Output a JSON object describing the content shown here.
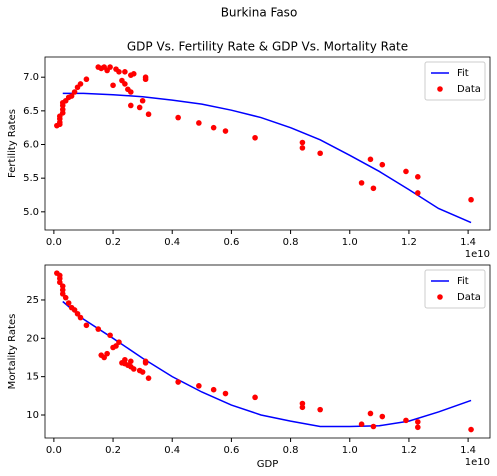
{
  "suptitle": "Burkina Faso",
  "chart_data": [
    {
      "type": "scatter",
      "title": "GDP Vs. Fertility Rate & GDP Vs. Mortality Rate",
      "y_label": "Fertility Rates",
      "x_offset_label": "1e10",
      "xlim": [
        -0.03,
        1.474
      ],
      "ylim": [
        4.73,
        7.3
      ],
      "xticks": [
        {
          "value": 0,
          "label": "0.0"
        },
        {
          "value": 0.2,
          "label": "0.2"
        },
        {
          "value": 0.4,
          "label": "0.4"
        },
        {
          "value": 0.6,
          "label": "0.6"
        },
        {
          "value": 0.8,
          "label": "0.8"
        },
        {
          "value": 1.0,
          "label": "1.0"
        },
        {
          "value": 1.2,
          "label": "1.2"
        },
        {
          "value": 1.4,
          "label": "1.4"
        }
      ],
      "yticks": [
        {
          "value": 5,
          "label": "5.0"
        },
        5.5,
        {
          "value": 6,
          "label": "6.0"
        },
        6.5,
        {
          "value": 7,
          "label": "7.0"
        }
      ],
      "legend": "upper right",
      "series": [
        {
          "name": "Fit",
          "color": "#0000ff",
          "style": "line",
          "x": [
            0.03,
            0.1,
            0.2,
            0.3,
            0.4,
            0.5,
            0.6,
            0.7,
            0.8,
            0.9,
            1.0,
            1.1,
            1.2,
            1.3,
            1.41
          ],
          "values": [
            6.76,
            6.76,
            6.74,
            6.71,
            6.66,
            6.6,
            6.51,
            6.4,
            6.25,
            6.07,
            5.84,
            5.6,
            5.33,
            5.05,
            4.84
          ]
        },
        {
          "name": "Data",
          "color": "#ff0000",
          "style": "marker",
          "x": [
            0.01,
            0.02,
            0.02,
            0.02,
            0.02,
            0.03,
            0.03,
            0.03,
            0.03,
            0.04,
            0.05,
            0.06,
            0.07,
            0.08,
            0.09,
            0.11,
            0.15,
            0.16,
            0.17,
            0.18,
            0.19,
            0.2,
            0.21,
            0.22,
            0.23,
            0.24,
            0.24,
            0.25,
            0.26,
            0.26,
            0.27,
            0.26,
            0.29,
            0.3,
            0.31,
            0.31,
            0.32,
            0.42,
            0.49,
            0.54,
            0.58,
            0.68,
            0.84,
            0.84,
            0.9,
            1.04,
            1.07,
            1.08,
            1.11,
            1.19,
            1.23,
            1.23,
            1.41
          ],
          "values": [
            6.28,
            6.3,
            6.33,
            6.38,
            6.42,
            6.47,
            6.52,
            6.58,
            6.62,
            6.65,
            6.7,
            6.72,
            6.78,
            6.85,
            6.9,
            6.97,
            7.15,
            7.13,
            7.15,
            7.1,
            7.15,
            6.88,
            7.12,
            7.08,
            6.95,
            6.9,
            7.08,
            6.82,
            6.78,
            7.03,
            7.05,
            6.58,
            6.55,
            6.65,
            7.0,
            6.97,
            6.45,
            6.4,
            6.32,
            6.25,
            6.2,
            6.1,
            6.03,
            5.95,
            5.87,
            5.43,
            5.78,
            5.35,
            5.7,
            5.6,
            5.28,
            5.52,
            5.18
          ]
        }
      ]
    },
    {
      "type": "scatter",
      "y_label": "Mortality Rates",
      "x_label": "GDP",
      "x_offset_label": "1e10",
      "xlim": [
        -0.03,
        1.474
      ],
      "ylim": [
        7.0,
        29.56
      ],
      "xticks": [
        {
          "value": 0,
          "label": "0.0"
        },
        {
          "value": 0.2,
          "label": "0.2"
        },
        {
          "value": 0.4,
          "label": "0.4"
        },
        {
          "value": 0.6,
          "label": "0.6"
        },
        {
          "value": 0.8,
          "label": "0.8"
        },
        {
          "value": 1.0,
          "label": "1.0"
        },
        {
          "value": 1.2,
          "label": "1.2"
        },
        {
          "value": 1.4,
          "label": "1.4"
        }
      ],
      "yticks": [
        10,
        15,
        20,
        25
      ],
      "legend": "upper right",
      "series": [
        {
          "name": "Fit",
          "color": "#0000ff",
          "style": "line",
          "x": [
            0.03,
            0.1,
            0.2,
            0.3,
            0.4,
            0.5,
            0.6,
            0.7,
            0.8,
            0.9,
            1.0,
            1.1,
            1.2,
            1.3,
            1.41
          ],
          "values": [
            24.8,
            22.5,
            20.0,
            17.4,
            15.0,
            13.0,
            11.3,
            10.0,
            9.2,
            8.5,
            8.5,
            8.6,
            9.2,
            10.4,
            11.9
          ]
        },
        {
          "name": "Data",
          "color": "#ff0000",
          "style": "marker",
          "x": [
            0.01,
            0.02,
            0.02,
            0.02,
            0.03,
            0.03,
            0.03,
            0.04,
            0.05,
            0.06,
            0.07,
            0.08,
            0.09,
            0.11,
            0.15,
            0.16,
            0.17,
            0.18,
            0.19,
            0.2,
            0.21,
            0.22,
            0.23,
            0.24,
            0.24,
            0.25,
            0.26,
            0.26,
            0.27,
            0.29,
            0.3,
            0.31,
            0.31,
            0.32,
            0.42,
            0.49,
            0.54,
            0.58,
            0.68,
            0.84,
            0.84,
            0.9,
            1.04,
            1.07,
            1.08,
            1.11,
            1.19,
            1.23,
            1.23,
            1.41
          ],
          "values": [
            28.5,
            28.2,
            27.8,
            27.3,
            26.8,
            26.3,
            25.8,
            25.3,
            24.6,
            24.0,
            23.7,
            23.2,
            22.7,
            21.7,
            21.2,
            17.8,
            17.5,
            18.0,
            20.4,
            18.8,
            19.0,
            19.5,
            16.8,
            17.2,
            16.7,
            16.5,
            17.0,
            16.3,
            16.0,
            15.8,
            15.6,
            16.8,
            17.0,
            14.8,
            14.3,
            13.8,
            13.3,
            12.8,
            12.3,
            11.5,
            11.0,
            10.7,
            8.8,
            10.2,
            8.5,
            9.8,
            9.3,
            8.4,
            9.1,
            8.1
          ]
        }
      ]
    }
  ]
}
